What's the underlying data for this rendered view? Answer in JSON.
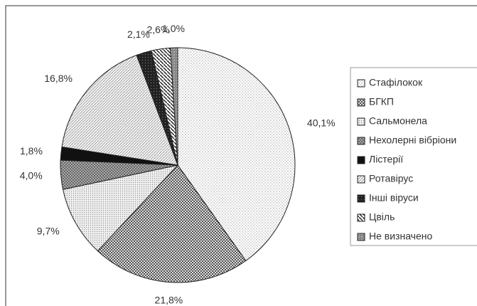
{
  "chart_data": {
    "type": "pie",
    "categories": [
      "Стафілокок",
      "БГКП",
      "Сальмонела",
      "Нехолерні вібріони",
      "Лістерії",
      "Ротавірус",
      "Інші віруси",
      "Цвіль",
      "Не визначено"
    ],
    "values": [
      40.1,
      21.8,
      9.7,
      4.0,
      1.8,
      16.8,
      2.1,
      2.6,
      1.0
    ],
    "value_labels": [
      "40,1%",
      "21,8%",
      "9,7%",
      "4,0%",
      "1,8%",
      "16,8%",
      "2,1%",
      "2,6%",
      "1,0%"
    ],
    "legend": "right"
  }
}
